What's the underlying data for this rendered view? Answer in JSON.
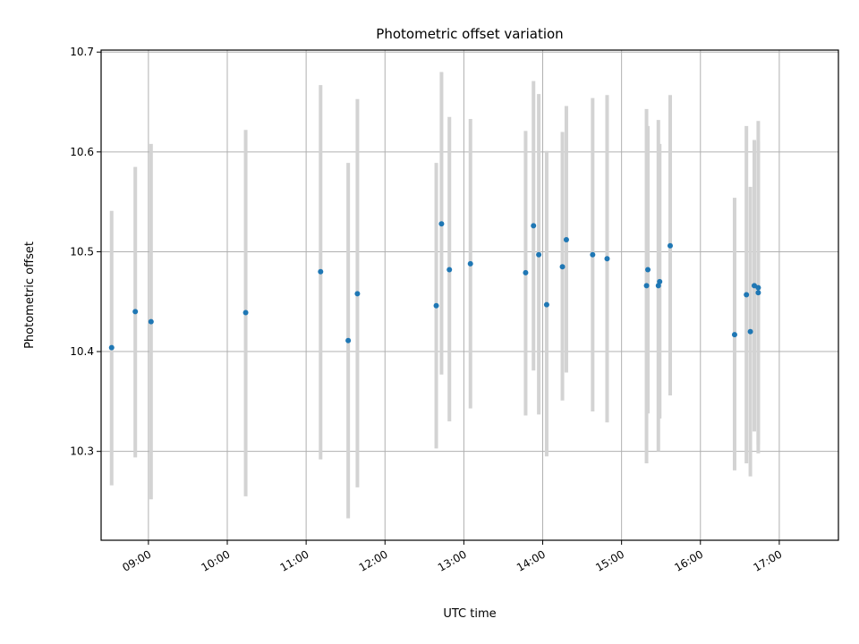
{
  "chart_data": {
    "type": "scatter",
    "title": "Photometric offset variation",
    "xlabel": "UTC time",
    "ylabel": "Photometric offset",
    "x_ticks": [
      "09:00",
      "10:00",
      "11:00",
      "12:00",
      "13:00",
      "14:00",
      "15:00",
      "16:00",
      "17:00"
    ],
    "y_ticks": [
      "10.3",
      "10.4",
      "10.5",
      "10.6",
      "10.7"
    ],
    "xlim": [
      "08:24",
      "17:45"
    ],
    "ylim": [
      10.211,
      10.702
    ],
    "grid": true,
    "point_color": "#1f77b4",
    "errorbar_color": "#d3d3d3",
    "points": [
      {
        "t": "08:32",
        "y": 10.404,
        "low": 10.266,
        "high": 10.541
      },
      {
        "t": "08:50",
        "y": 10.44,
        "low": 10.294,
        "high": 10.585
      },
      {
        "t": "09:02",
        "y": 10.43,
        "low": 10.252,
        "high": 10.608
      },
      {
        "t": "10:14",
        "y": 10.439,
        "low": 10.255,
        "high": 10.622
      },
      {
        "t": "11:11",
        "y": 10.48,
        "low": 10.292,
        "high": 10.667
      },
      {
        "t": "11:32",
        "y": 10.411,
        "low": 10.233,
        "high": 10.589
      },
      {
        "t": "11:39",
        "y": 10.458,
        "low": 10.264,
        "high": 10.653
      },
      {
        "t": "12:39",
        "y": 10.446,
        "low": 10.303,
        "high": 10.589
      },
      {
        "t": "12:43",
        "y": 10.528,
        "low": 10.377,
        "high": 10.68
      },
      {
        "t": "12:49",
        "y": 10.482,
        "low": 10.33,
        "high": 10.635
      },
      {
        "t": "13:05",
        "y": 10.488,
        "low": 10.343,
        "high": 10.633
      },
      {
        "t": "13:47",
        "y": 10.479,
        "low": 10.336,
        "high": 10.621
      },
      {
        "t": "13:53",
        "y": 10.526,
        "low": 10.381,
        "high": 10.671
      },
      {
        "t": "13:57",
        "y": 10.497,
        "low": 10.337,
        "high": 10.658
      },
      {
        "t": "14:03",
        "y": 10.447,
        "low": 10.295,
        "high": 10.601
      },
      {
        "t": "14:15",
        "y": 10.485,
        "low": 10.351,
        "high": 10.62
      },
      {
        "t": "14:18",
        "y": 10.512,
        "low": 10.379,
        "high": 10.646
      },
      {
        "t": "14:38",
        "y": 10.497,
        "low": 10.34,
        "high": 10.654
      },
      {
        "t": "14:49",
        "y": 10.493,
        "low": 10.329,
        "high": 10.657
      },
      {
        "t": "15:19",
        "y": 10.466,
        "low": 10.288,
        "high": 10.643
      },
      {
        "t": "15:20",
        "y": 10.482,
        "low": 10.338,
        "high": 10.626
      },
      {
        "t": "15:28",
        "y": 10.466,
        "low": 10.3,
        "high": 10.632
      },
      {
        "t": "15:29",
        "y": 10.47,
        "low": 10.333,
        "high": 10.608
      },
      {
        "t": "15:37",
        "y": 10.506,
        "low": 10.356,
        "high": 10.657
      },
      {
        "t": "16:26",
        "y": 10.417,
        "low": 10.281,
        "high": 10.554
      },
      {
        "t": "16:35",
        "y": 10.457,
        "low": 10.288,
        "high": 10.626
      },
      {
        "t": "16:38",
        "y": 10.42,
        "low": 10.275,
        "high": 10.565
      },
      {
        "t": "16:41",
        "y": 10.466,
        "low": 10.32,
        "high": 10.612
      },
      {
        "t": "16:44",
        "y": 10.464,
        "low": 10.298,
        "high": 10.631
      },
      {
        "t": "16:44",
        "y": 10.459,
        "low": 10.307,
        "high": 10.611
      }
    ]
  }
}
